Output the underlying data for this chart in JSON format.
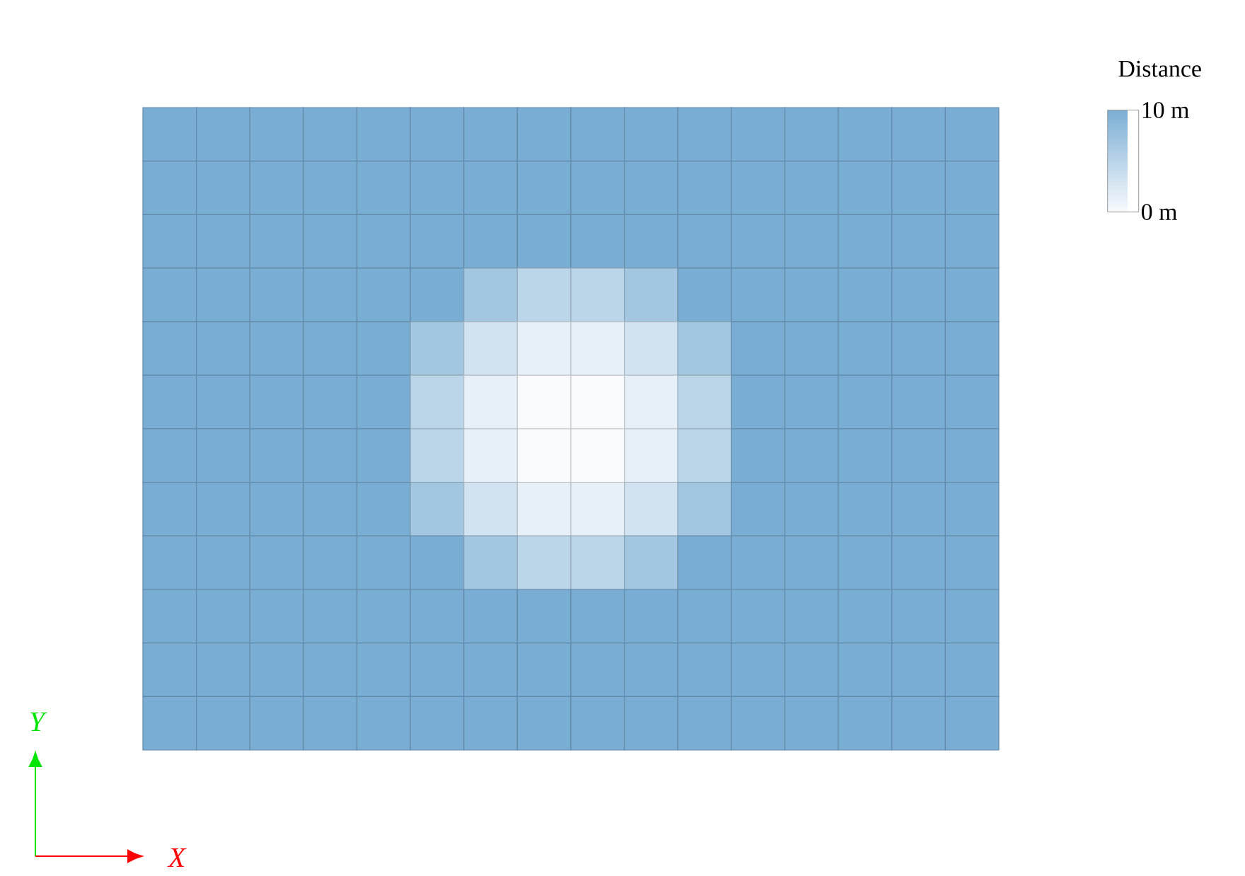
{
  "chart_data": {
    "type": "heatmap",
    "categories": [
      null,
      null,
      null,
      null,
      null,
      null,
      null,
      null,
      null,
      null,
      null,
      null,
      null,
      null,
      null,
      null
    ],
    "y_categories": [
      null,
      null,
      null,
      null,
      null,
      null,
      null,
      null,
      null,
      null,
      null,
      null
    ],
    "cells": [
      [
        10,
        10,
        10,
        10,
        10,
        10,
        10,
        10,
        10,
        10,
        10,
        10,
        10,
        10,
        10,
        10
      ],
      [
        10,
        10,
        10,
        10,
        10,
        10,
        10,
        10,
        10,
        10,
        10,
        10,
        10,
        10,
        10,
        10
      ],
      [
        10,
        10,
        10,
        10,
        10,
        10,
        10,
        10,
        10,
        10,
        10,
        10,
        10,
        10,
        10,
        10
      ],
      [
        10,
        10,
        10,
        10,
        10,
        10,
        6.6,
        4.8,
        4.8,
        6.6,
        10,
        10,
        10,
        10,
        10,
        10
      ],
      [
        10,
        10,
        10,
        10,
        10,
        6.6,
        3.1,
        1.3,
        1.3,
        3.1,
        6.6,
        10,
        10,
        10,
        10,
        10
      ],
      [
        10,
        10,
        10,
        10,
        10,
        4.8,
        1.3,
        0,
        0,
        1.3,
        4.8,
        10,
        10,
        10,
        10,
        10
      ],
      [
        10,
        10,
        10,
        10,
        10,
        4.8,
        1.3,
        0,
        0,
        1.3,
        4.8,
        10,
        10,
        10,
        10,
        10
      ],
      [
        10,
        10,
        10,
        10,
        10,
        6.6,
        3.1,
        1.3,
        1.3,
        3.1,
        6.6,
        10,
        10,
        10,
        10,
        10
      ],
      [
        10,
        10,
        10,
        10,
        10,
        10,
        6.6,
        4.8,
        4.8,
        6.6,
        10,
        10,
        10,
        10,
        10,
        10
      ],
      [
        10,
        10,
        10,
        10,
        10,
        10,
        10,
        10,
        10,
        10,
        10,
        10,
        10,
        10,
        10,
        10
      ],
      [
        10,
        10,
        10,
        10,
        10,
        10,
        10,
        10,
        10,
        10,
        10,
        10,
        10,
        10,
        10,
        10
      ],
      [
        10,
        10,
        10,
        10,
        10,
        10,
        10,
        10,
        10,
        10,
        10,
        10,
        10,
        10,
        10,
        10
      ]
    ],
    "clim": [
      0,
      10
    ],
    "cticks": [
      {
        "value": 0,
        "label": "0 m"
      },
      {
        "value": 10,
        "label": "10 m"
      }
    ],
    "clabel": "Distance",
    "annotations": [
      "Y",
      "X"
    ]
  }
}
